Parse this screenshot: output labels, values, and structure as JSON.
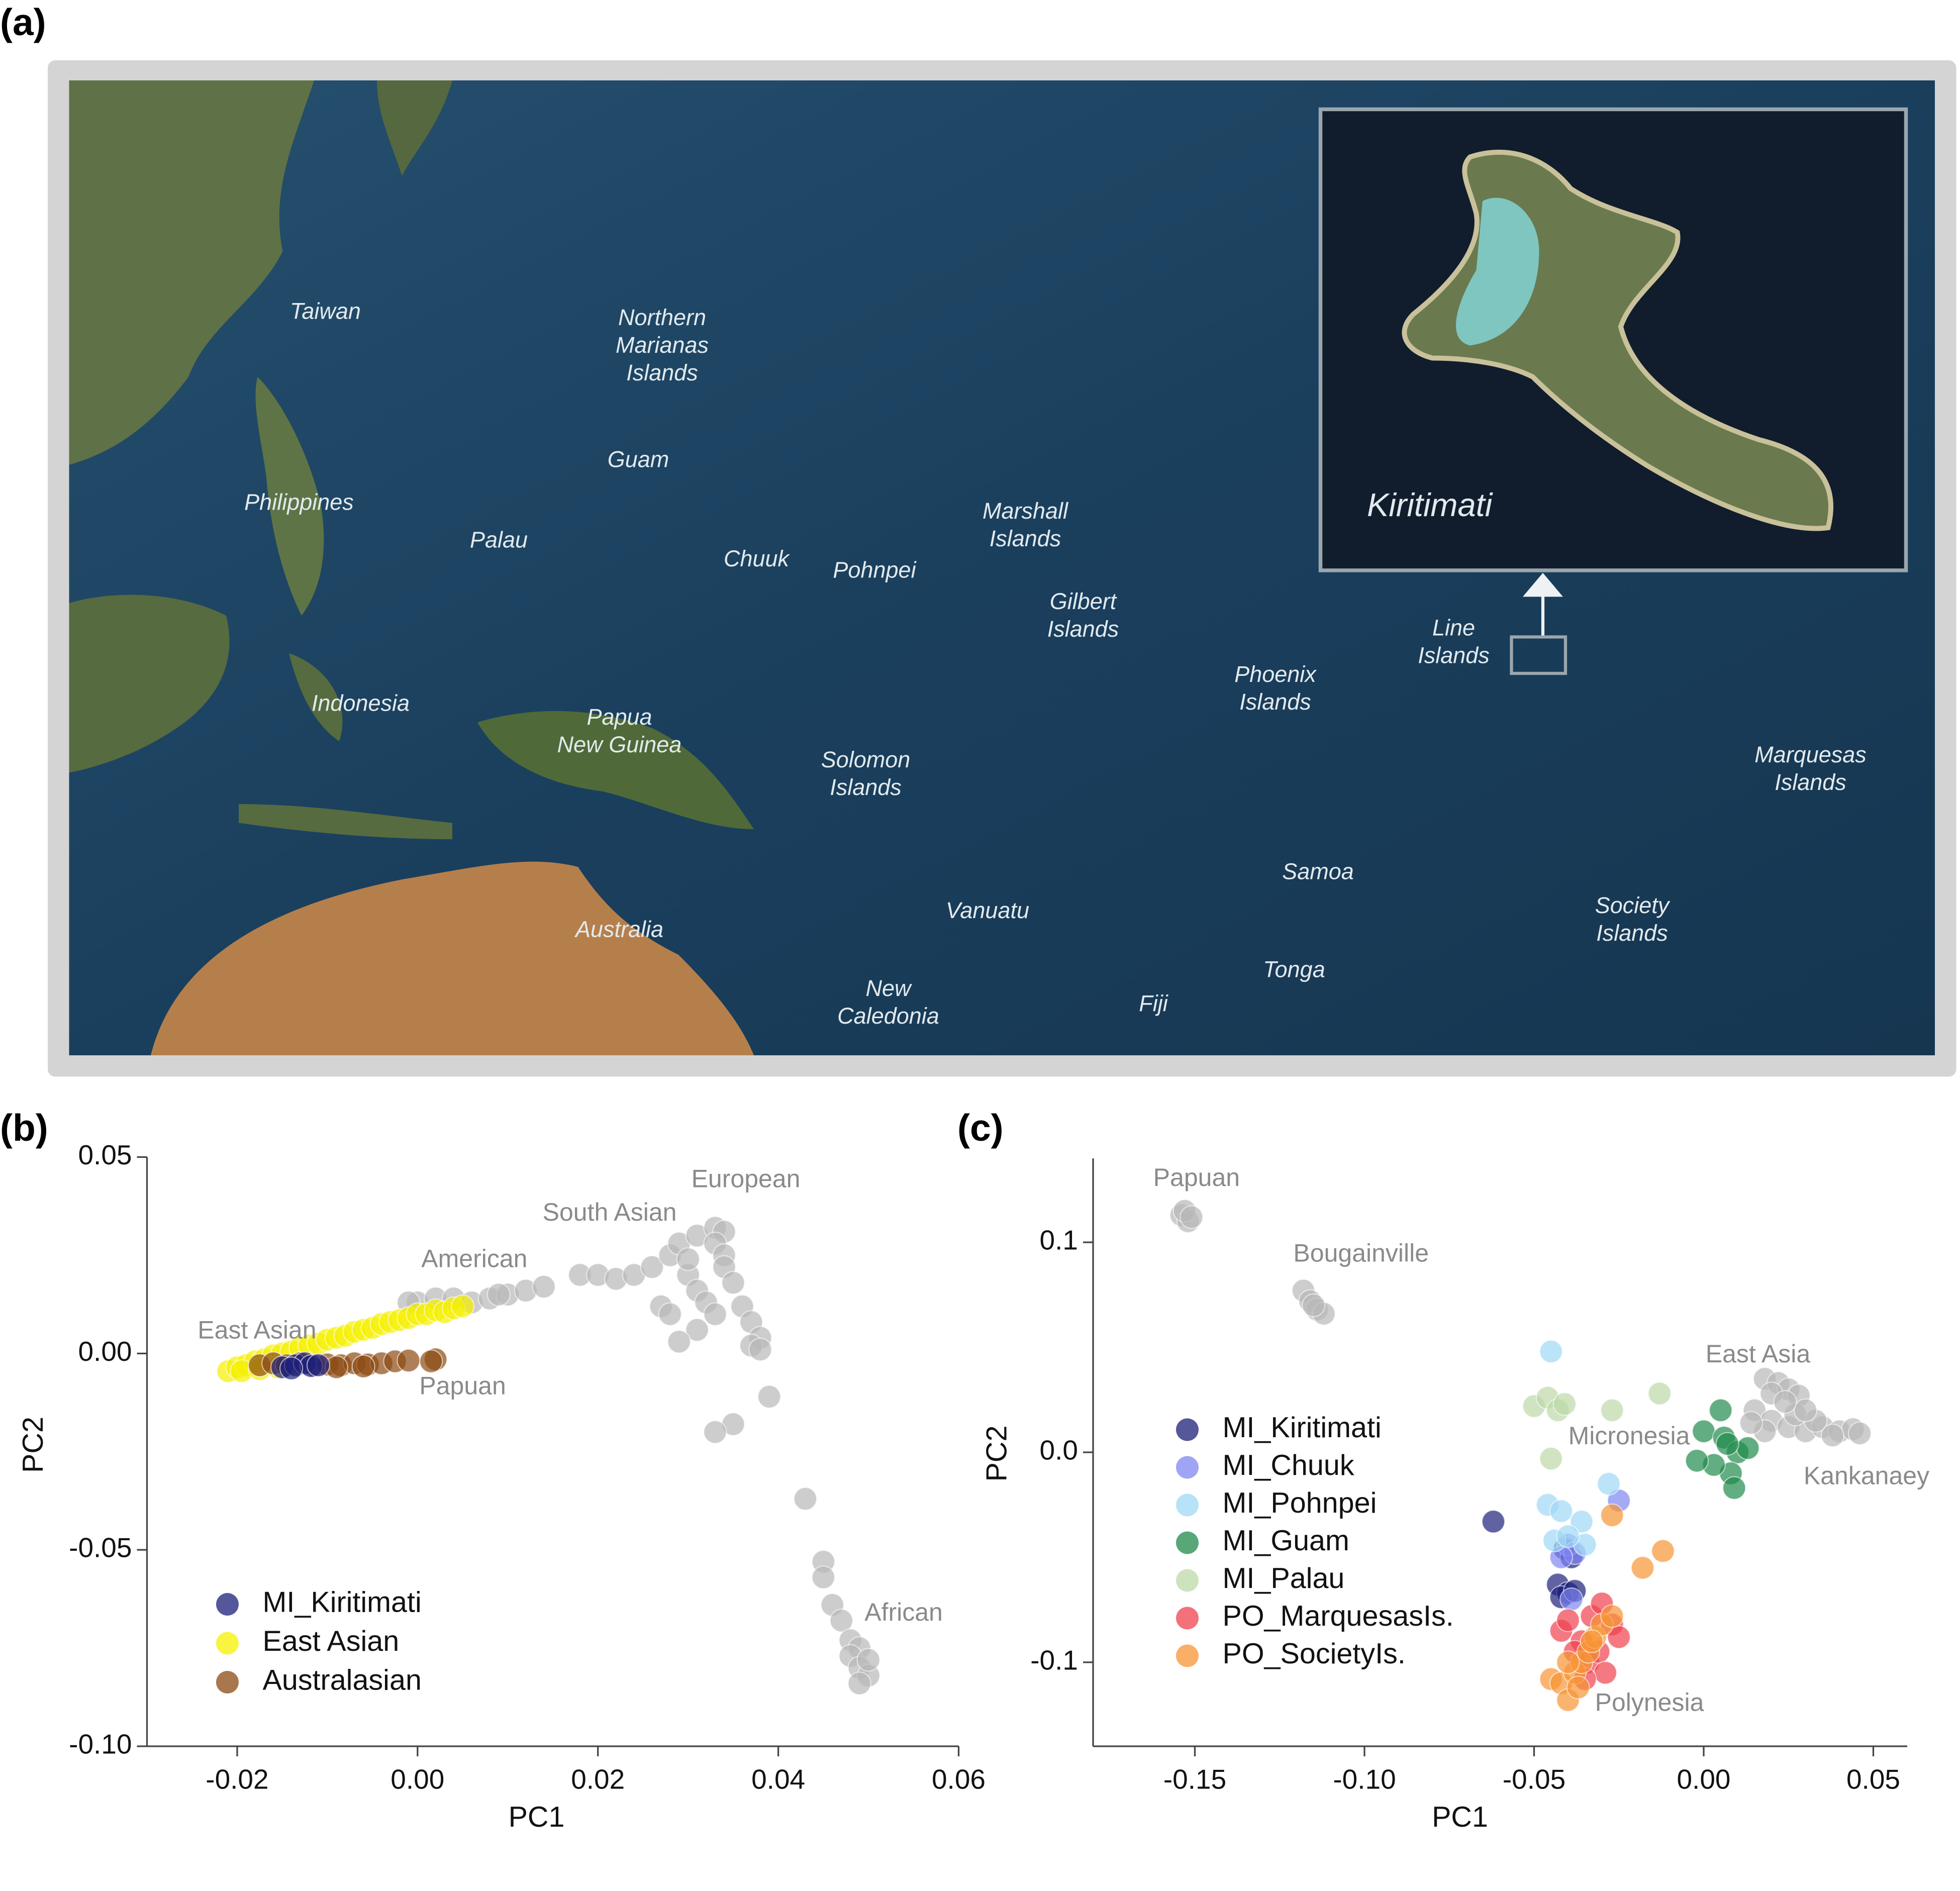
{
  "panel_labels": [
    "(a)",
    "(b)",
    "(c)"
  ],
  "map": {
    "labels": [
      [
        "Taiwan"
      ],
      [
        "Northern",
        "Marianas",
        "Islands"
      ],
      [
        "Guam"
      ],
      [
        "Philippines"
      ],
      [
        "Palau"
      ],
      [
        "Chuuk"
      ],
      [
        "Pohnpei"
      ],
      [
        "Marshall",
        "Islands"
      ],
      [
        "Gilbert",
        "Islands"
      ],
      [
        "Line",
        "Islands"
      ],
      [
        "Phoenix",
        "Islands"
      ],
      [
        "Indonesia"
      ],
      [
        "Papua",
        "New Guinea"
      ],
      [
        "Solomon",
        "Islands"
      ],
      [
        "Marquesas",
        "Islands"
      ],
      [
        "Samoa"
      ],
      [
        "Society",
        "Islands"
      ],
      [
        "Australia"
      ],
      [
        "Vanuatu"
      ],
      [
        "New",
        "Caledonia"
      ],
      [
        "Fiji"
      ],
      [
        "Tonga"
      ]
    ],
    "inset_label": "Kiritimati"
  },
  "chart_data": [
    {
      "type": "scatter",
      "xlabel": "PC1",
      "ylabel": "PC2",
      "xlim": [
        -0.03,
        0.06
      ],
      "ylim": [
        -0.1,
        0.05
      ],
      "xticks": [
        {
          "value": -0.02,
          "label": "-0.02"
        },
        {
          "value": 0,
          "label": "0.00"
        },
        {
          "value": 0.02,
          "label": "0.02"
        },
        {
          "value": 0.04,
          "label": "0.04"
        },
        {
          "value": 0.06,
          "label": "0.06"
        }
      ],
      "yticks": [
        {
          "value": 0.05,
          "label": "0.05"
        },
        {
          "value": 0,
          "label": "0.00"
        },
        {
          "value": -0.05,
          "label": "-0.05"
        },
        {
          "value": -0.1,
          "label": "-0.10"
        }
      ],
      "legend": "lower left",
      "background": {
        "color": "#b8b8b8",
        "x": [
          0.0,
          0.002,
          0.004,
          0.006,
          0.008,
          0.01,
          0.012,
          0.014,
          0.009,
          -0.001,
          0.018,
          0.02,
          0.022,
          0.024,
          0.026,
          0.028,
          0.029,
          0.031,
          0.033,
          0.034,
          0.033,
          0.034,
          0.034,
          0.035,
          0.036,
          0.037,
          0.038,
          0.037,
          0.03,
          0.031,
          0.032,
          0.033,
          0.03,
          0.027,
          0.028,
          0.039,
          0.035,
          0.033,
          0.031,
          0.029,
          0.038,
          0.043,
          0.045,
          0.045,
          0.046,
          0.047,
          0.048,
          0.049,
          0.048,
          0.049,
          0.05,
          0.049,
          0.05
        ],
        "y": [
          0.013,
          0.014,
          0.014,
          0.013,
          0.014,
          0.015,
          0.016,
          0.017,
          0.015,
          0.013,
          0.02,
          0.02,
          0.019,
          0.02,
          0.022,
          0.025,
          0.028,
          0.03,
          0.032,
          0.031,
          0.028,
          0.025,
          0.022,
          0.018,
          0.012,
          0.008,
          0.004,
          0.002,
          0.02,
          0.016,
          0.013,
          0.01,
          0.024,
          0.012,
          0.01,
          -0.011,
          -0.018,
          -0.02,
          0.006,
          0.003,
          0.001,
          -0.037,
          -0.053,
          -0.057,
          -0.064,
          -0.068,
          -0.073,
          -0.075,
          -0.077,
          -0.08,
          -0.082,
          -0.084,
          -0.078
        ]
      },
      "series": [
        {
          "name": "East Asian",
          "color": "#f5f000",
          "x": [
            -0.021,
            -0.02,
            -0.019,
            -0.018,
            -0.017,
            -0.016,
            -0.015,
            -0.014,
            -0.013,
            -0.012,
            -0.011,
            -0.01,
            -0.009,
            -0.008,
            -0.007,
            -0.006,
            -0.005,
            -0.004,
            -0.003,
            -0.002,
            -0.001,
            0.0,
            0.001,
            0.002,
            0.003,
            0.004,
            0.005,
            -0.0195,
            -0.0175,
            -0.0155,
            -0.0135
          ],
          "y": [
            -0.0045,
            -0.0035,
            -0.003,
            -0.002,
            -0.0015,
            -0.0005,
            0.0,
            0.0005,
            0.0015,
            0.002,
            0.0025,
            0.0035,
            0.004,
            0.0045,
            0.0055,
            0.006,
            0.0065,
            0.0075,
            0.008,
            0.0085,
            0.009,
            0.01,
            0.01,
            0.011,
            0.0105,
            0.0115,
            0.012,
            -0.0045,
            -0.004,
            -0.0035,
            -0.003
          ]
        },
        {
          "name": "Australasian",
          "color": "#8b4a12",
          "x": [
            -0.0175,
            -0.016,
            -0.0145,
            -0.013,
            -0.0115,
            -0.01,
            -0.0085,
            -0.007,
            -0.0055,
            -0.004,
            -0.0025,
            -0.001,
            0.002,
            0.0015,
            -0.009,
            -0.006
          ],
          "y": [
            -0.003,
            -0.0025,
            -0.003,
            -0.0025,
            -0.003,
            -0.0028,
            -0.003,
            -0.0025,
            -0.0028,
            -0.0025,
            -0.002,
            -0.0018,
            -0.0015,
            -0.002,
            -0.0035,
            -0.0033
          ]
        },
        {
          "name": "MI_Kiritimati",
          "color": "#1c1f7a",
          "x": [
            -0.015,
            -0.0135,
            -0.0125,
            -0.0118,
            -0.014,
            -0.011
          ],
          "y": [
            -0.0035,
            -0.003,
            -0.0025,
            -0.0032,
            -0.0038,
            -0.003
          ]
        }
      ],
      "legend_order": [
        2,
        0,
        1
      ],
      "annotations": [
        {
          "text": "European",
          "x": 0.0364,
          "y": 0.044
        },
        {
          "text": "South Asian",
          "x": 0.0213,
          "y": 0.0355
        },
        {
          "text": "American",
          "x": 0.0063,
          "y": 0.0237
        },
        {
          "text": "East Asian",
          "x": -0.0178,
          "y": 0.0055
        },
        {
          "text": "Papuan",
          "x": 0.005,
          "y": -0.0087
        },
        {
          "text": "African",
          "x": 0.0539,
          "y": -0.0663
        }
      ]
    },
    {
      "type": "scatter",
      "xlabel": "PC1",
      "ylabel": "PC2",
      "xlim": [
        -0.18,
        0.06
      ],
      "ylim": [
        -0.14,
        0.14
      ],
      "xticks": [
        -0.15,
        {
          "value": -0.1,
          "label": "-0.10"
        },
        {
          "value": -0.05,
          "label": "-0.05"
        },
        {
          "value": 0,
          "label": "0.00"
        },
        {
          "value": 0.05,
          "label": "0.05"
        }
      ],
      "yticks": [
        0.1,
        {
          "value": 0,
          "label": "0.0"
        },
        -0.1
      ],
      "legend": "center left",
      "background": {
        "color": "#b8b8b8",
        "x": [
          -0.154,
          -0.152,
          -0.153,
          -0.151,
          -0.118,
          -0.116,
          -0.114,
          -0.112,
          -0.115,
          0.018,
          0.022,
          0.025,
          0.028,
          0.02,
          0.015,
          0.02,
          0.025,
          0.03,
          0.035,
          0.04,
          0.044,
          0.046,
          0.038,
          0.033,
          0.027,
          0.018,
          0.014,
          0.03,
          0.024
        ],
        "y": [
          0.113,
          0.11,
          0.115,
          0.112,
          0.077,
          0.072,
          0.068,
          0.066,
          0.07,
          0.035,
          0.033,
          0.03,
          0.027,
          0.028,
          0.02,
          0.015,
          0.012,
          0.01,
          0.012,
          0.01,
          0.011,
          0.009,
          0.008,
          0.015,
          0.018,
          0.01,
          0.014,
          0.02,
          0.024
        ]
      },
      "series": [
        {
          "name": "MI_Kiritimati",
          "color": "#1c1f7a",
          "x": [
            -0.062,
            -0.041,
            -0.039,
            -0.043,
            -0.04,
            -0.042,
            -0.038
          ],
          "y": [
            -0.033,
            -0.046,
            -0.05,
            -0.063,
            -0.067,
            -0.069,
            -0.066
          ]
        },
        {
          "name": "MI_Chuuk",
          "color": "#7f86f2",
          "x": [
            -0.04,
            -0.038,
            -0.042,
            -0.025,
            -0.039
          ],
          "y": [
            -0.044,
            -0.048,
            -0.05,
            -0.023,
            -0.07
          ]
        },
        {
          "name": "MI_Pohnpei",
          "color": "#9fd8f5",
          "x": [
            -0.045,
            -0.046,
            -0.042,
            -0.036,
            -0.044,
            -0.028,
            -0.035,
            -0.04
          ],
          "y": [
            0.048,
            -0.025,
            -0.028,
            -0.033,
            -0.042,
            -0.015,
            -0.044,
            -0.04
          ]
        },
        {
          "name": "MI_Guam",
          "color": "#1f8a4c",
          "x": [
            0.005,
            0.0,
            0.006,
            0.01,
            0.008,
            0.013,
            0.003,
            -0.002,
            0.009,
            0.007
          ],
          "y": [
            0.02,
            0.01,
            0.007,
            0.0,
            -0.01,
            0.002,
            -0.006,
            -0.004,
            -0.017,
            0.004
          ]
        },
        {
          "name": "MI_Palau",
          "color": "#bcd9a8",
          "x": [
            -0.05,
            -0.046,
            -0.043,
            -0.041,
            -0.027,
            -0.013,
            -0.045
          ],
          "y": [
            0.022,
            0.026,
            0.02,
            0.023,
            0.02,
            0.028,
            -0.003
          ]
        },
        {
          "name": "PO_MarquesasIs.",
          "color": "#f0404d",
          "x": [
            -0.042,
            -0.04,
            -0.036,
            -0.033,
            -0.03,
            -0.027,
            -0.025,
            -0.038,
            -0.034,
            -0.031,
            -0.029,
            -0.035
          ],
          "y": [
            -0.085,
            -0.08,
            -0.09,
            -0.078,
            -0.072,
            -0.082,
            -0.088,
            -0.095,
            -0.1,
            -0.095,
            -0.105,
            -0.108
          ]
        },
        {
          "name": "PO_SocietyIs.",
          "color": "#f79433",
          "x": [
            -0.045,
            -0.042,
            -0.04,
            -0.038,
            -0.036,
            -0.034,
            -0.032,
            -0.03,
            -0.04,
            -0.037,
            -0.033,
            -0.027,
            -0.018,
            -0.012,
            -0.027
          ],
          "y": [
            -0.108,
            -0.11,
            -0.118,
            -0.105,
            -0.1,
            -0.095,
            -0.088,
            -0.082,
            -0.1,
            -0.112,
            -0.09,
            -0.078,
            -0.055,
            -0.047,
            -0.03
          ]
        }
      ],
      "legend_order": [
        0,
        1,
        2,
        3,
        4,
        5,
        6
      ],
      "annotations": [
        {
          "text": "Papuan",
          "x": -0.1495,
          "y": 0.13
        },
        {
          "text": "Bougainville",
          "x": -0.101,
          "y": 0.094
        },
        {
          "text": "East Asia",
          "x": 0.016,
          "y": 0.046
        },
        {
          "text": "Micronesia",
          "x": -0.022,
          "y": 0.007
        },
        {
          "text": "Kankanaey",
          "x": 0.048,
          "y": -0.012
        },
        {
          "text": "Polynesia",
          "x": -0.016,
          "y": -0.12
        }
      ]
    }
  ]
}
